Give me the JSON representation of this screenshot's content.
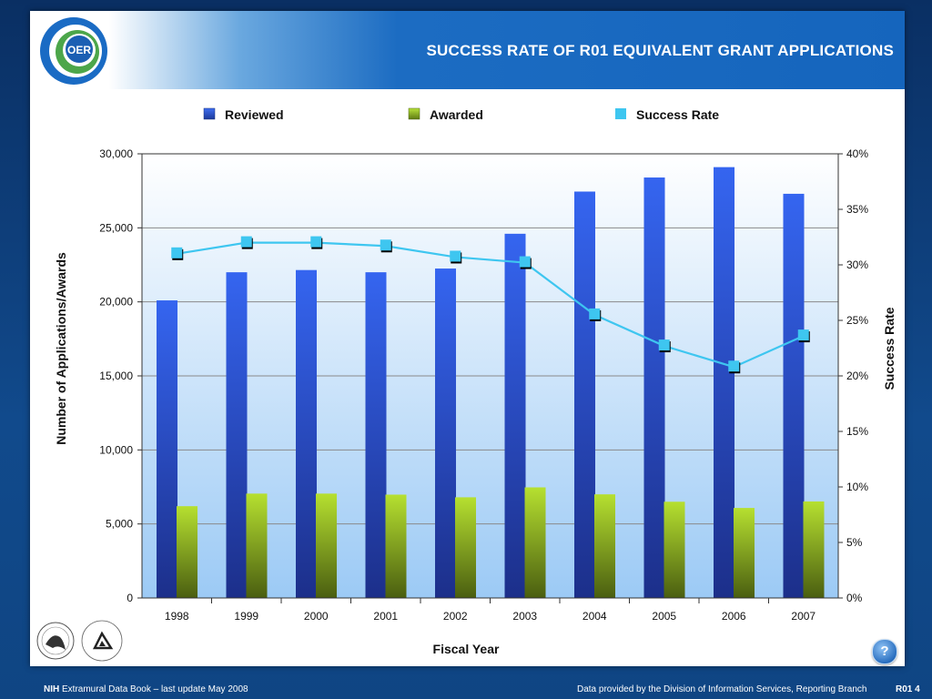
{
  "slide": {
    "title": "SUCCESS RATE OF R01 EQUIVALENT GRANT APPLICATIONS",
    "logo_text": "OER"
  },
  "footer": {
    "left_bold": "NIH",
    "left_text": " Extramural Data Book – last update May 2008",
    "right_text": "Data provided by the Division of Information Services, Reporting Branch",
    "page_label": "R01 4",
    "help_label": "?"
  },
  "colors": {
    "reviewed": "#2b5fe0",
    "awarded": "#a6d321",
    "success_rate": "#3ec6f0"
  },
  "chart_data": {
    "type": "bar",
    "categories": [
      "1998",
      "1999",
      "2000",
      "2001",
      "2002",
      "2003",
      "2004",
      "2005",
      "2006",
      "2007"
    ],
    "series": [
      {
        "name": "Reviewed",
        "type": "bar",
        "axis": "left",
        "values": [
          20100,
          22000,
          22150,
          22000,
          22250,
          24600,
          27450,
          28400,
          29100,
          27300
        ]
      },
      {
        "name": "Awarded",
        "type": "bar",
        "axis": "left",
        "values": [
          6200,
          7050,
          7050,
          6980,
          6800,
          7470,
          7000,
          6500,
          6080,
          6520
        ]
      },
      {
        "name": "Success Rate",
        "type": "line",
        "axis": "right",
        "values": [
          31.0,
          32.0,
          32.0,
          31.7,
          30.7,
          30.2,
          25.5,
          22.7,
          20.8,
          23.6
        ]
      }
    ],
    "xlabel": "Fiscal Year",
    "ylabel": "Number of Applications/Awards",
    "y2label": "Success Rate",
    "ylim": [
      0,
      30000
    ],
    "y2lim": [
      0,
      40
    ],
    "yticks": [
      "0",
      "5,000",
      "10,000",
      "15,000",
      "20,000",
      "25,000",
      "30,000"
    ],
    "y2ticks": [
      "0%",
      "5%",
      "10%",
      "15%",
      "20%",
      "25%",
      "30%",
      "35%",
      "40%"
    ],
    "grid": true,
    "legend_position": "top"
  }
}
